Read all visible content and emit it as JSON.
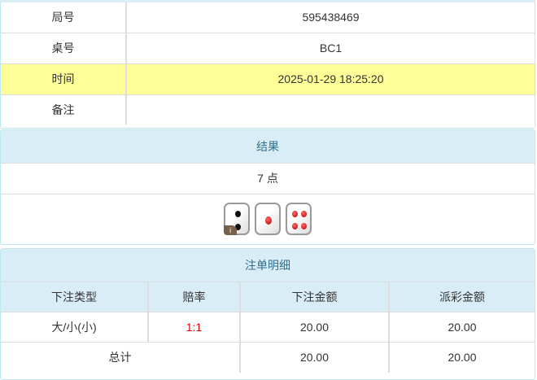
{
  "info": [
    {
      "label": "局号",
      "value": "595438469"
    },
    {
      "label": "桌号",
      "value": "BC1"
    },
    {
      "label": "时间",
      "value": "2025-01-29 18:25:20",
      "highlight": "#ffff99"
    },
    {
      "label": "备注",
      "value": ""
    }
  ],
  "result": {
    "title": "结果",
    "points": "7 点",
    "dice": [
      2,
      1,
      4
    ]
  },
  "bets": {
    "title": "注单明细",
    "headers": [
      "下注类型",
      "赔率",
      "下注金额",
      "派彩金额"
    ],
    "rows": [
      {
        "type": "大/小(小)",
        "odds": "1:1",
        "amount": "20.00",
        "payout": "20.00"
      }
    ],
    "total": {
      "label": "总计",
      "amount": "20.00",
      "payout": "20.00"
    },
    "odds_color": "#e00000"
  }
}
